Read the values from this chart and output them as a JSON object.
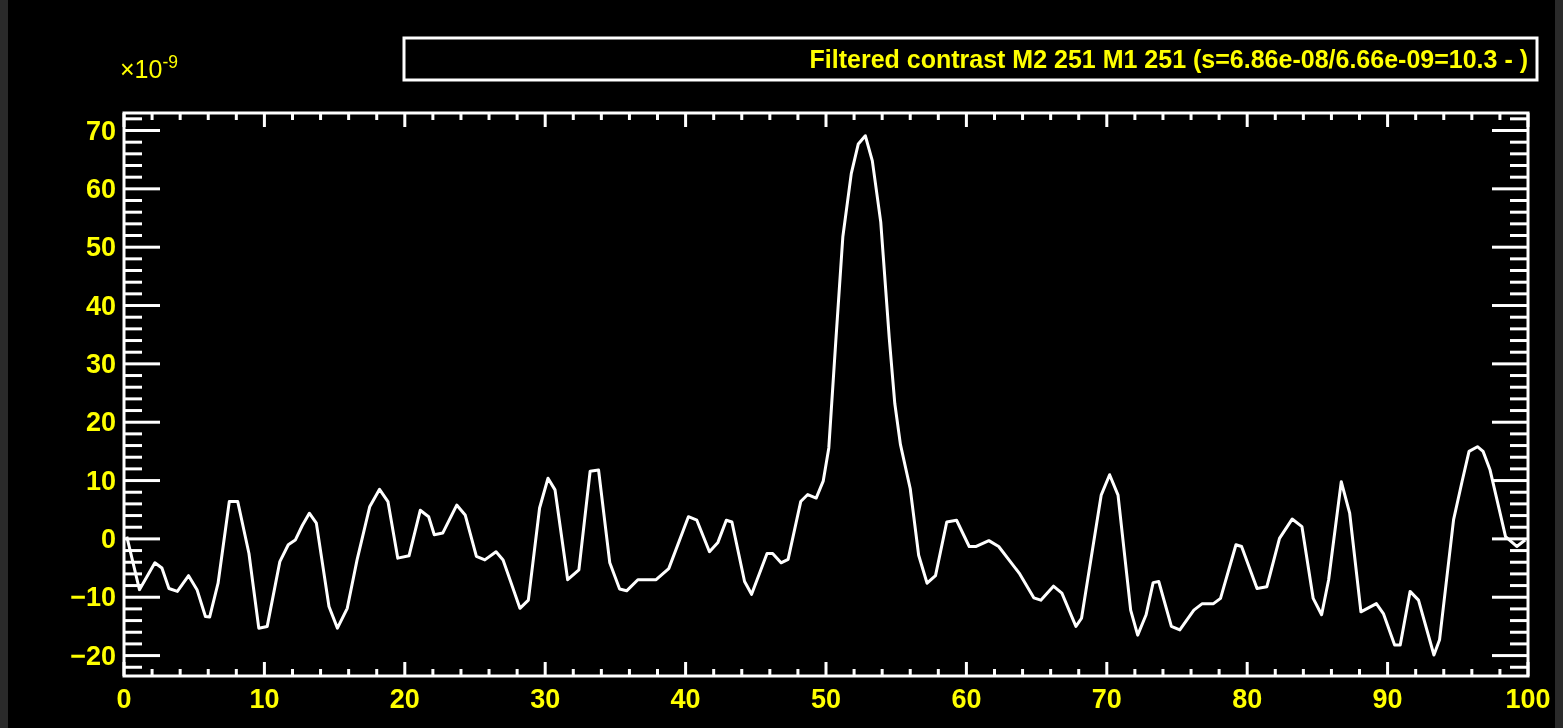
{
  "chart_data": {
    "type": "line",
    "title": "Filtered contrast M2 251 M1 251  (s=6.86e-08/6.66e-09=10.3 - )",
    "ylabel": "×10$^{-9}$",
    "xlim": [
      0,
      100
    ],
    "ylim": [
      -23.5,
      73
    ],
    "xticks": [
      0,
      10,
      20,
      30,
      40,
      50,
      60,
      70,
      80,
      90,
      100
    ],
    "yticks": [
      {
        "value": -20,
        "label": "−20"
      },
      {
        "value": -10,
        "label": "−10"
      },
      0,
      10,
      20,
      30,
      40,
      50,
      60,
      70
    ],
    "grid": false,
    "marker": "none",
    "line_style": "solid",
    "series": [
      {
        "color": "#ffffff",
        "x": [
          0.2,
          1.1,
          2.2,
          2.7,
          3.2,
          3.8,
          4.6,
          5.2,
          5.8,
          6.1,
          6.7,
          7.5,
          8.1,
          8.9,
          9.6,
          10.2,
          11.1,
          11.7,
          12.2,
          12.7,
          13.2,
          13.7,
          14.6,
          15.2,
          15.9,
          16.6,
          17.5,
          18.2,
          18.8,
          19.5,
          20.3,
          21.1,
          21.7,
          22.1,
          22.7,
          23.7,
          24.3,
          25.1,
          25.7,
          26.5,
          27.0,
          28.2,
          28.8,
          29.6,
          30.2,
          30.7,
          31.6,
          32.4,
          33.2,
          33.8,
          34.6,
          35.3,
          35.8,
          36.6,
          37.9,
          38.8,
          40.2,
          40.8,
          41.7,
          42.3,
          42.9,
          43.3,
          44.2,
          44.7,
          45.8,
          46.2,
          46.8,
          47.3,
          48.2,
          48.7,
          49.3,
          49.8,
          50.2,
          50.7,
          51.2,
          51.8,
          52.3,
          52.8,
          53.3,
          53.9,
          54.5,
          54.9,
          55.3,
          56.0,
          56.6,
          57.2,
          57.8,
          58.6,
          59.3,
          60.2,
          60.7,
          61.6,
          62.3,
          63.8,
          64.8,
          65.3,
          66.2,
          66.8,
          67.8,
          68.2,
          69.6,
          70.2,
          70.8,
          71.7,
          72.2,
          72.8,
          73.3,
          73.7,
          74.6,
          75.2,
          76.2,
          76.8,
          77.6,
          78.1,
          79.2,
          79.6,
          80.7,
          81.4,
          82.3,
          83.2,
          83.9,
          84.7,
          85.3,
          85.8,
          86.7,
          87.3,
          88.1,
          89.2,
          89.7,
          90.5,
          90.9,
          91.6,
          92.2,
          93.3,
          93.7,
          94.7,
          95.3,
          95.8,
          96.4,
          96.8,
          97.3,
          98.4,
          99.2,
          99.8
        ],
        "values": [
          0.4,
          -8.7,
          -4.1,
          -5.0,
          -8.5,
          -9.0,
          -6.3,
          -8.7,
          -13.3,
          -13.4,
          -7.6,
          6.4,
          6.4,
          -2.5,
          -15.3,
          -15.0,
          -3.9,
          -1.0,
          -0.2,
          2.3,
          4.4,
          2.7,
          -11.6,
          -15.3,
          -11.9,
          -3.6,
          5.5,
          8.5,
          6.4,
          -3.3,
          -2.9,
          4.9,
          3.8,
          0.7,
          1.0,
          5.8,
          4.1,
          -3.0,
          -3.6,
          -2.2,
          -3.6,
          -11.9,
          -10.5,
          5.3,
          10.4,
          8.4,
          -7.0,
          -5.3,
          11.6,
          11.8,
          -4.1,
          -8.6,
          -8.9,
          -7.0,
          -7.0,
          -5.1,
          3.8,
          3.2,
          -2.2,
          -0.6,
          3.2,
          2.9,
          -7.3,
          -9.5,
          -2.5,
          -2.5,
          -4.1,
          -3.5,
          6.4,
          7.6,
          7.0,
          9.9,
          15.6,
          34.0,
          51.8,
          62.6,
          67.7,
          69.1,
          64.8,
          54.3,
          34.6,
          23.2,
          16.2,
          8.6,
          -2.8,
          -7.6,
          -6.3,
          2.9,
          3.2,
          -1.3,
          -1.3,
          -0.3,
          -1.3,
          -6.0,
          -10.1,
          -10.5,
          -8.1,
          -9.3,
          -15.0,
          -13.6,
          7.5,
          11.0,
          7.5,
          -12.2,
          -16.5,
          -13.0,
          -7.5,
          -7.3,
          -15.0,
          -15.6,
          -12.2,
          -11.1,
          -11.1,
          -10.2,
          -1.0,
          -1.3,
          -8.5,
          -8.2,
          0.1,
          3.4,
          2.1,
          -10.2,
          -13.0,
          -7.0,
          9.8,
          4.4,
          -12.5,
          -11.1,
          -12.8,
          -18.2,
          -18.2,
          -9.0,
          -10.5,
          -19.9,
          -17.3,
          3.3,
          9.8,
          15.0,
          15.8,
          15.0,
          11.8,
          0.4,
          -1.3,
          -0.2
        ]
      }
    ]
  }
}
